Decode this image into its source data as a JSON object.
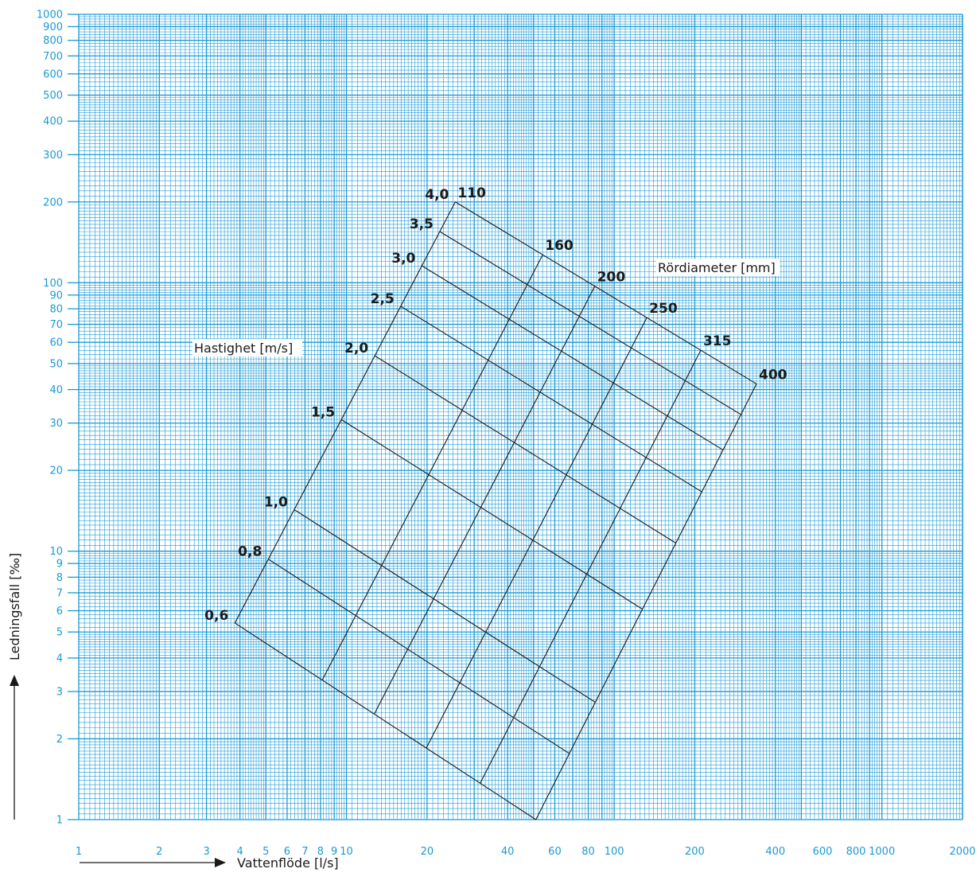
{
  "chart_data": {
    "type": "nomogram",
    "xlabel": "Vattenflöde [l/s]",
    "ylabel": "Ledningsfall [‰]",
    "x_scale": "log",
    "y_scale": "log",
    "xlim": [
      1,
      2000
    ],
    "ylim": [
      1,
      1000
    ],
    "grid": true,
    "x_ticks": [
      {
        "v": 1,
        "label": "1"
      },
      {
        "v": 2,
        "label": "2"
      },
      {
        "v": 3,
        "label": "3"
      },
      {
        "v": 4,
        "label": "4"
      },
      {
        "v": 5,
        "label": "5"
      },
      {
        "v": 6,
        "label": "6"
      },
      {
        "v": 7,
        "label": "7"
      },
      {
        "v": 8,
        "label": "8"
      },
      {
        "v": 9,
        "label": "9"
      },
      {
        "v": 10,
        "label": "10"
      },
      {
        "v": 20,
        "label": "20"
      },
      {
        "v": 40,
        "label": "40"
      },
      {
        "v": 60,
        "label": "60"
      },
      {
        "v": 80,
        "label": "80"
      },
      {
        "v": 100,
        "label": "100"
      },
      {
        "v": 200,
        "label": "200"
      },
      {
        "v": 400,
        "label": "400"
      },
      {
        "v": 600,
        "label": "600"
      },
      {
        "v": 800,
        "label": "800"
      },
      {
        "v": 1000,
        "label": "1000"
      },
      {
        "v": 2000,
        "label": "2000"
      }
    ],
    "y_ticks": [
      {
        "v": 1,
        "label": "1"
      },
      {
        "v": 2,
        "label": "2"
      },
      {
        "v": 3,
        "label": "3"
      },
      {
        "v": 4,
        "label": "4"
      },
      {
        "v": 5,
        "label": "5"
      },
      {
        "v": 6,
        "label": "6"
      },
      {
        "v": 7,
        "label": "7"
      },
      {
        "v": 8,
        "label": "8"
      },
      {
        "v": 9,
        "label": "9"
      },
      {
        "v": 10,
        "label": "10"
      },
      {
        "v": 20,
        "label": "20"
      },
      {
        "v": 30,
        "label": "30"
      },
      {
        "v": 40,
        "label": "40"
      },
      {
        "v": 50,
        "label": "50"
      },
      {
        "v": 60,
        "label": "60"
      },
      {
        "v": 70,
        "label": "70"
      },
      {
        "v": 80,
        "label": "80"
      },
      {
        "v": 90,
        "label": "90"
      },
      {
        "v": 100,
        "label": "100"
      },
      {
        "v": 200,
        "label": "200"
      },
      {
        "v": 300,
        "label": "300"
      },
      {
        "v": 400,
        "label": "400"
      },
      {
        "v": 500,
        "label": "500"
      },
      {
        "v": 600,
        "label": "600"
      },
      {
        "v": 700,
        "label": "700"
      },
      {
        "v": 800,
        "label": "800"
      },
      {
        "v": 900,
        "label": "900"
      },
      {
        "v": 1000,
        "label": "1000"
      }
    ],
    "velocity_title": "Hastighet [m/s]",
    "diameter_title": "Rördiameter [mm]",
    "velocities": [
      {
        "label": "0,6",
        "v": 0.6
      },
      {
        "label": "0,8",
        "v": 0.8
      },
      {
        "label": "1,0",
        "v": 1.0
      },
      {
        "label": "1,5",
        "v": 1.5
      },
      {
        "label": "2,0",
        "v": 2.0
      },
      {
        "label": "2,5",
        "v": 2.5
      },
      {
        "label": "3,0",
        "v": 3.0
      },
      {
        "label": "3,5",
        "v": 3.5
      },
      {
        "label": "4,0",
        "v": 4.0
      }
    ],
    "diameters": [
      {
        "label": "110",
        "d": 110,
        "q_at_v06": 3.83,
        "q_at_v40": 25.5
      },
      {
        "label": "160",
        "d": 160,
        "q_at_v06": 8.1,
        "q_at_v40": 54.0
      },
      {
        "label": "200",
        "d": 200,
        "q_at_v06": 12.7,
        "q_at_v40": 84.8
      },
      {
        "label": "250",
        "d": 250,
        "q_at_v06": 19.9,
        "q_at_v40": 132.5
      },
      {
        "label": "315",
        "d": 315,
        "q_at_v06": 31.6,
        "q_at_v40": 210.5
      },
      {
        "label": "400",
        "d": 400,
        "q_at_v06": 51.0,
        "q_at_v40": 340.0
      }
    ],
    "corners": {
      "d110_v06": {
        "q": 3.83,
        "s": 5.4
      },
      "d110_v40": {
        "q": 25.5,
        "s": 200
      },
      "d400_v06": {
        "q": 51.0,
        "s": 1.0
      },
      "d400_v40": {
        "q": 340.0,
        "s": 42
      }
    }
  }
}
